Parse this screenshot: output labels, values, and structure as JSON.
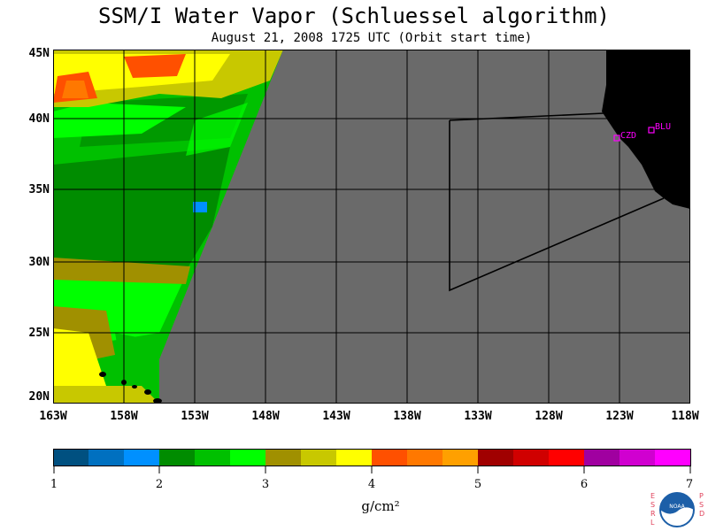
{
  "header": {
    "title": "SSM/I Water Vapor (Schluessel algorithm)",
    "subtitle": "August 21, 2008  1725 UTC  (Orbit start time)"
  },
  "map": {
    "latitude_labels": [
      "45N",
      "40N",
      "35N",
      "30N",
      "25N",
      "20N"
    ],
    "longitude_labels": [
      "163W",
      "158W",
      "153W",
      "148W",
      "143W",
      "138W",
      "133W",
      "128W",
      "123W",
      "118W"
    ],
    "station_labels": [
      "CZD",
      "BLU"
    ],
    "no_data_color": "#6a6a6a",
    "land_color": "#000000",
    "station_color": "#ff00ff"
  },
  "colorbar": {
    "tick_labels": [
      "1",
      "2",
      "3",
      "4",
      "5",
      "6",
      "7"
    ],
    "units": "g/cm²",
    "colors": [
      "#005080",
      "#0070c0",
      "#0090ff",
      "#008c00",
      "#00c000",
      "#00ff00",
      "#a09000",
      "#c8c800",
      "#ffff00",
      "#ff5000",
      "#ff7800",
      "#ffa000",
      "#a00000",
      "#d00000",
      "#ff0000",
      "#a000a0",
      "#d000d0",
      "#ff00ff"
    ]
  },
  "logo": {
    "left_text": "ESRL",
    "right_text": "PSD",
    "center_text": "NOAA"
  }
}
